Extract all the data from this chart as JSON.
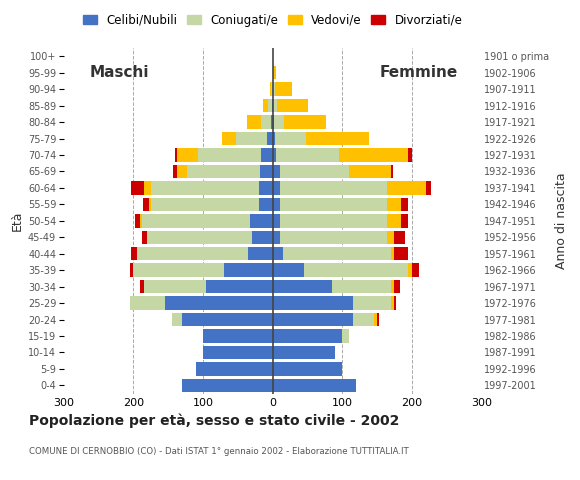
{
  "title": "Popolazione per età, sesso e stato civile - 2002",
  "subtitle": "COMUNE DI CERNOBBIO (CO) - Dati ISTAT 1° gennaio 2002 - Elaborazione TUTTITALIA.IT",
  "ylabel_left": "Età",
  "ylabel_right": "Anno di nascita",
  "age_groups": [
    "0-4",
    "5-9",
    "10-14",
    "15-19",
    "20-24",
    "25-29",
    "30-34",
    "35-39",
    "40-44",
    "45-49",
    "50-54",
    "55-59",
    "60-64",
    "65-69",
    "70-74",
    "75-79",
    "80-84",
    "85-89",
    "90-94",
    "95-99",
    "100+"
  ],
  "birth_years": [
    "1997-2001",
    "1992-1996",
    "1987-1991",
    "1982-1986",
    "1977-1981",
    "1972-1976",
    "1967-1971",
    "1962-1966",
    "1957-1961",
    "1952-1956",
    "1947-1951",
    "1942-1946",
    "1937-1941",
    "1932-1936",
    "1927-1931",
    "1922-1926",
    "1917-1921",
    "1912-1916",
    "1907-1911",
    "1902-1906",
    "1901 o prima"
  ],
  "colors": {
    "celibe": "#4472c4",
    "coniugato": "#c5d7a5",
    "vedovo": "#ffc000",
    "divorziato": "#cc0000"
  },
  "legend_labels": [
    "Celibi/Nubili",
    "Coniugati/e",
    "Vedovi/e",
    "Divorziati/e"
  ],
  "maschi_label": "Maschi",
  "femmine_label": "Femmine",
  "maschi": {
    "celibe": [
      130,
      110,
      100,
      100,
      130,
      155,
      95,
      70,
      35,
      30,
      32,
      20,
      20,
      18,
      17,
      8,
      2,
      1,
      0,
      0,
      0
    ],
    "coniugato": [
      0,
      0,
      0,
      0,
      15,
      50,
      90,
      130,
      160,
      150,
      155,
      155,
      155,
      105,
      90,
      45,
      15,
      5,
      2,
      0,
      0
    ],
    "vedovo": [
      0,
      0,
      0,
      0,
      0,
      0,
      0,
      0,
      0,
      0,
      3,
      3,
      10,
      15,
      30,
      20,
      20,
      8,
      2,
      0,
      0
    ],
    "divorziato": [
      0,
      0,
      0,
      0,
      0,
      0,
      5,
      5,
      8,
      8,
      8,
      8,
      18,
      5,
      3,
      0,
      0,
      0,
      0,
      0,
      0
    ]
  },
  "femmine": {
    "nubile": [
      120,
      100,
      90,
      100,
      115,
      115,
      85,
      45,
      15,
      10,
      10,
      10,
      10,
      10,
      5,
      3,
      2,
      1,
      1,
      0,
      0
    ],
    "coniugata": [
      0,
      0,
      0,
      10,
      30,
      55,
      85,
      150,
      155,
      155,
      155,
      155,
      155,
      100,
      90,
      45,
      15,
      5,
      2,
      0,
      0
    ],
    "vedova": [
      0,
      0,
      0,
      0,
      5,
      5,
      5,
      5,
      5,
      10,
      20,
      20,
      55,
      60,
      100,
      90,
      60,
      45,
      25,
      5,
      0
    ],
    "divorziata": [
      0,
      0,
      0,
      0,
      3,
      3,
      8,
      10,
      20,
      15,
      10,
      10,
      8,
      3,
      5,
      0,
      0,
      0,
      0,
      0,
      0
    ]
  },
  "xlim": 300,
  "background_color": "#ffffff",
  "grid_color": "#aaaaaa"
}
